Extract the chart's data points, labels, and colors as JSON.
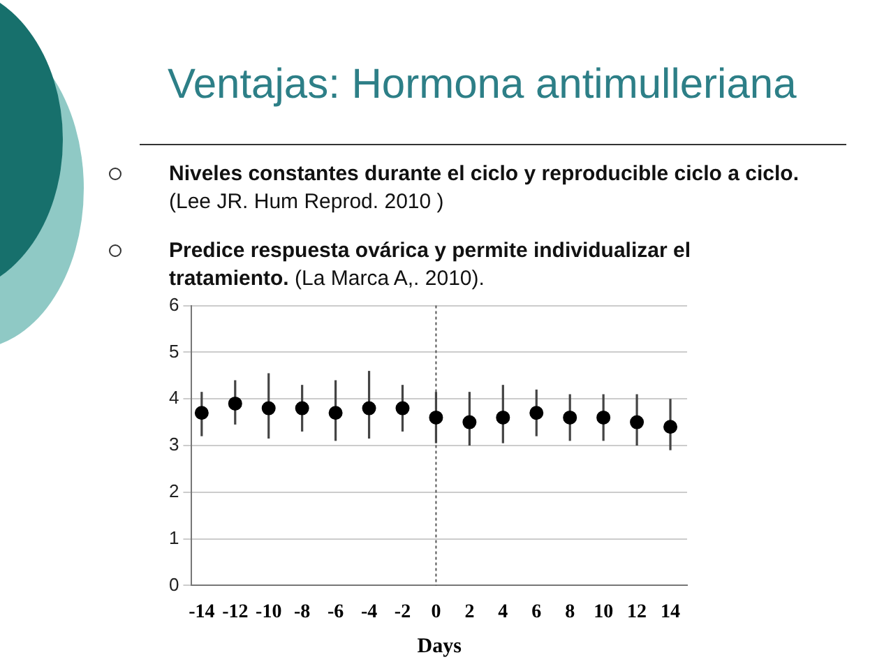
{
  "chart_data": {
    "type": "scatter",
    "title": "Ventajas: Hormona antimulleriana",
    "annotations": [
      "Niveles constantes durante el ciclo y reproducible ciclo a ciclo.",
      "(Lee JR. Hum Reprod. 2010 )",
      "Predice  respuesta ovárica y permite individualizar el tratamiento.",
      " (La Marca A,. 2010)."
    ],
    "xlabel": "Days",
    "x": [
      -14,
      -12,
      -10,
      -8,
      -6,
      -4,
      -2,
      0,
      2,
      4,
      6,
      8,
      10,
      12,
      14
    ],
    "series": [
      {
        "color": "#000000",
        "values": [
          3.7,
          3.9,
          3.8,
          3.8,
          3.7,
          3.8,
          3.8,
          3.6,
          3.5,
          3.6,
          3.7,
          3.6,
          3.6,
          3.5,
          3.4
        ],
        "errors": [
          [
            3.2,
            4.15
          ],
          [
            3.45,
            4.4
          ],
          [
            3.15,
            4.55
          ],
          [
            3.3,
            4.3
          ],
          [
            3.1,
            4.4
          ],
          [
            3.15,
            4.6
          ],
          [
            3.3,
            4.3
          ],
          [
            3.05,
            4.15
          ],
          [
            3.0,
            4.15
          ],
          [
            3.05,
            4.3
          ],
          [
            3.2,
            4.2
          ],
          [
            3.1,
            4.1
          ],
          [
            3.1,
            4.1
          ],
          [
            3.0,
            4.1
          ],
          [
            2.9,
            4.0
          ]
        ]
      }
    ],
    "xlim": [
      -14.6,
      15
    ],
    "xticks": [
      -14,
      -12,
      -10,
      -8,
      -6,
      -4,
      -2,
      0,
      2,
      4,
      6,
      8,
      10,
      12,
      14
    ],
    "ylim": [
      0,
      6
    ],
    "yticks": [
      0,
      1,
      2,
      3,
      4,
      5,
      6
    ],
    "ref_lines": [
      {
        "axis": "x",
        "value": 0,
        "color": "#555555",
        "line_style": "dotted"
      }
    ],
    "grid": "y",
    "legend": false,
    "marker": "circle"
  }
}
